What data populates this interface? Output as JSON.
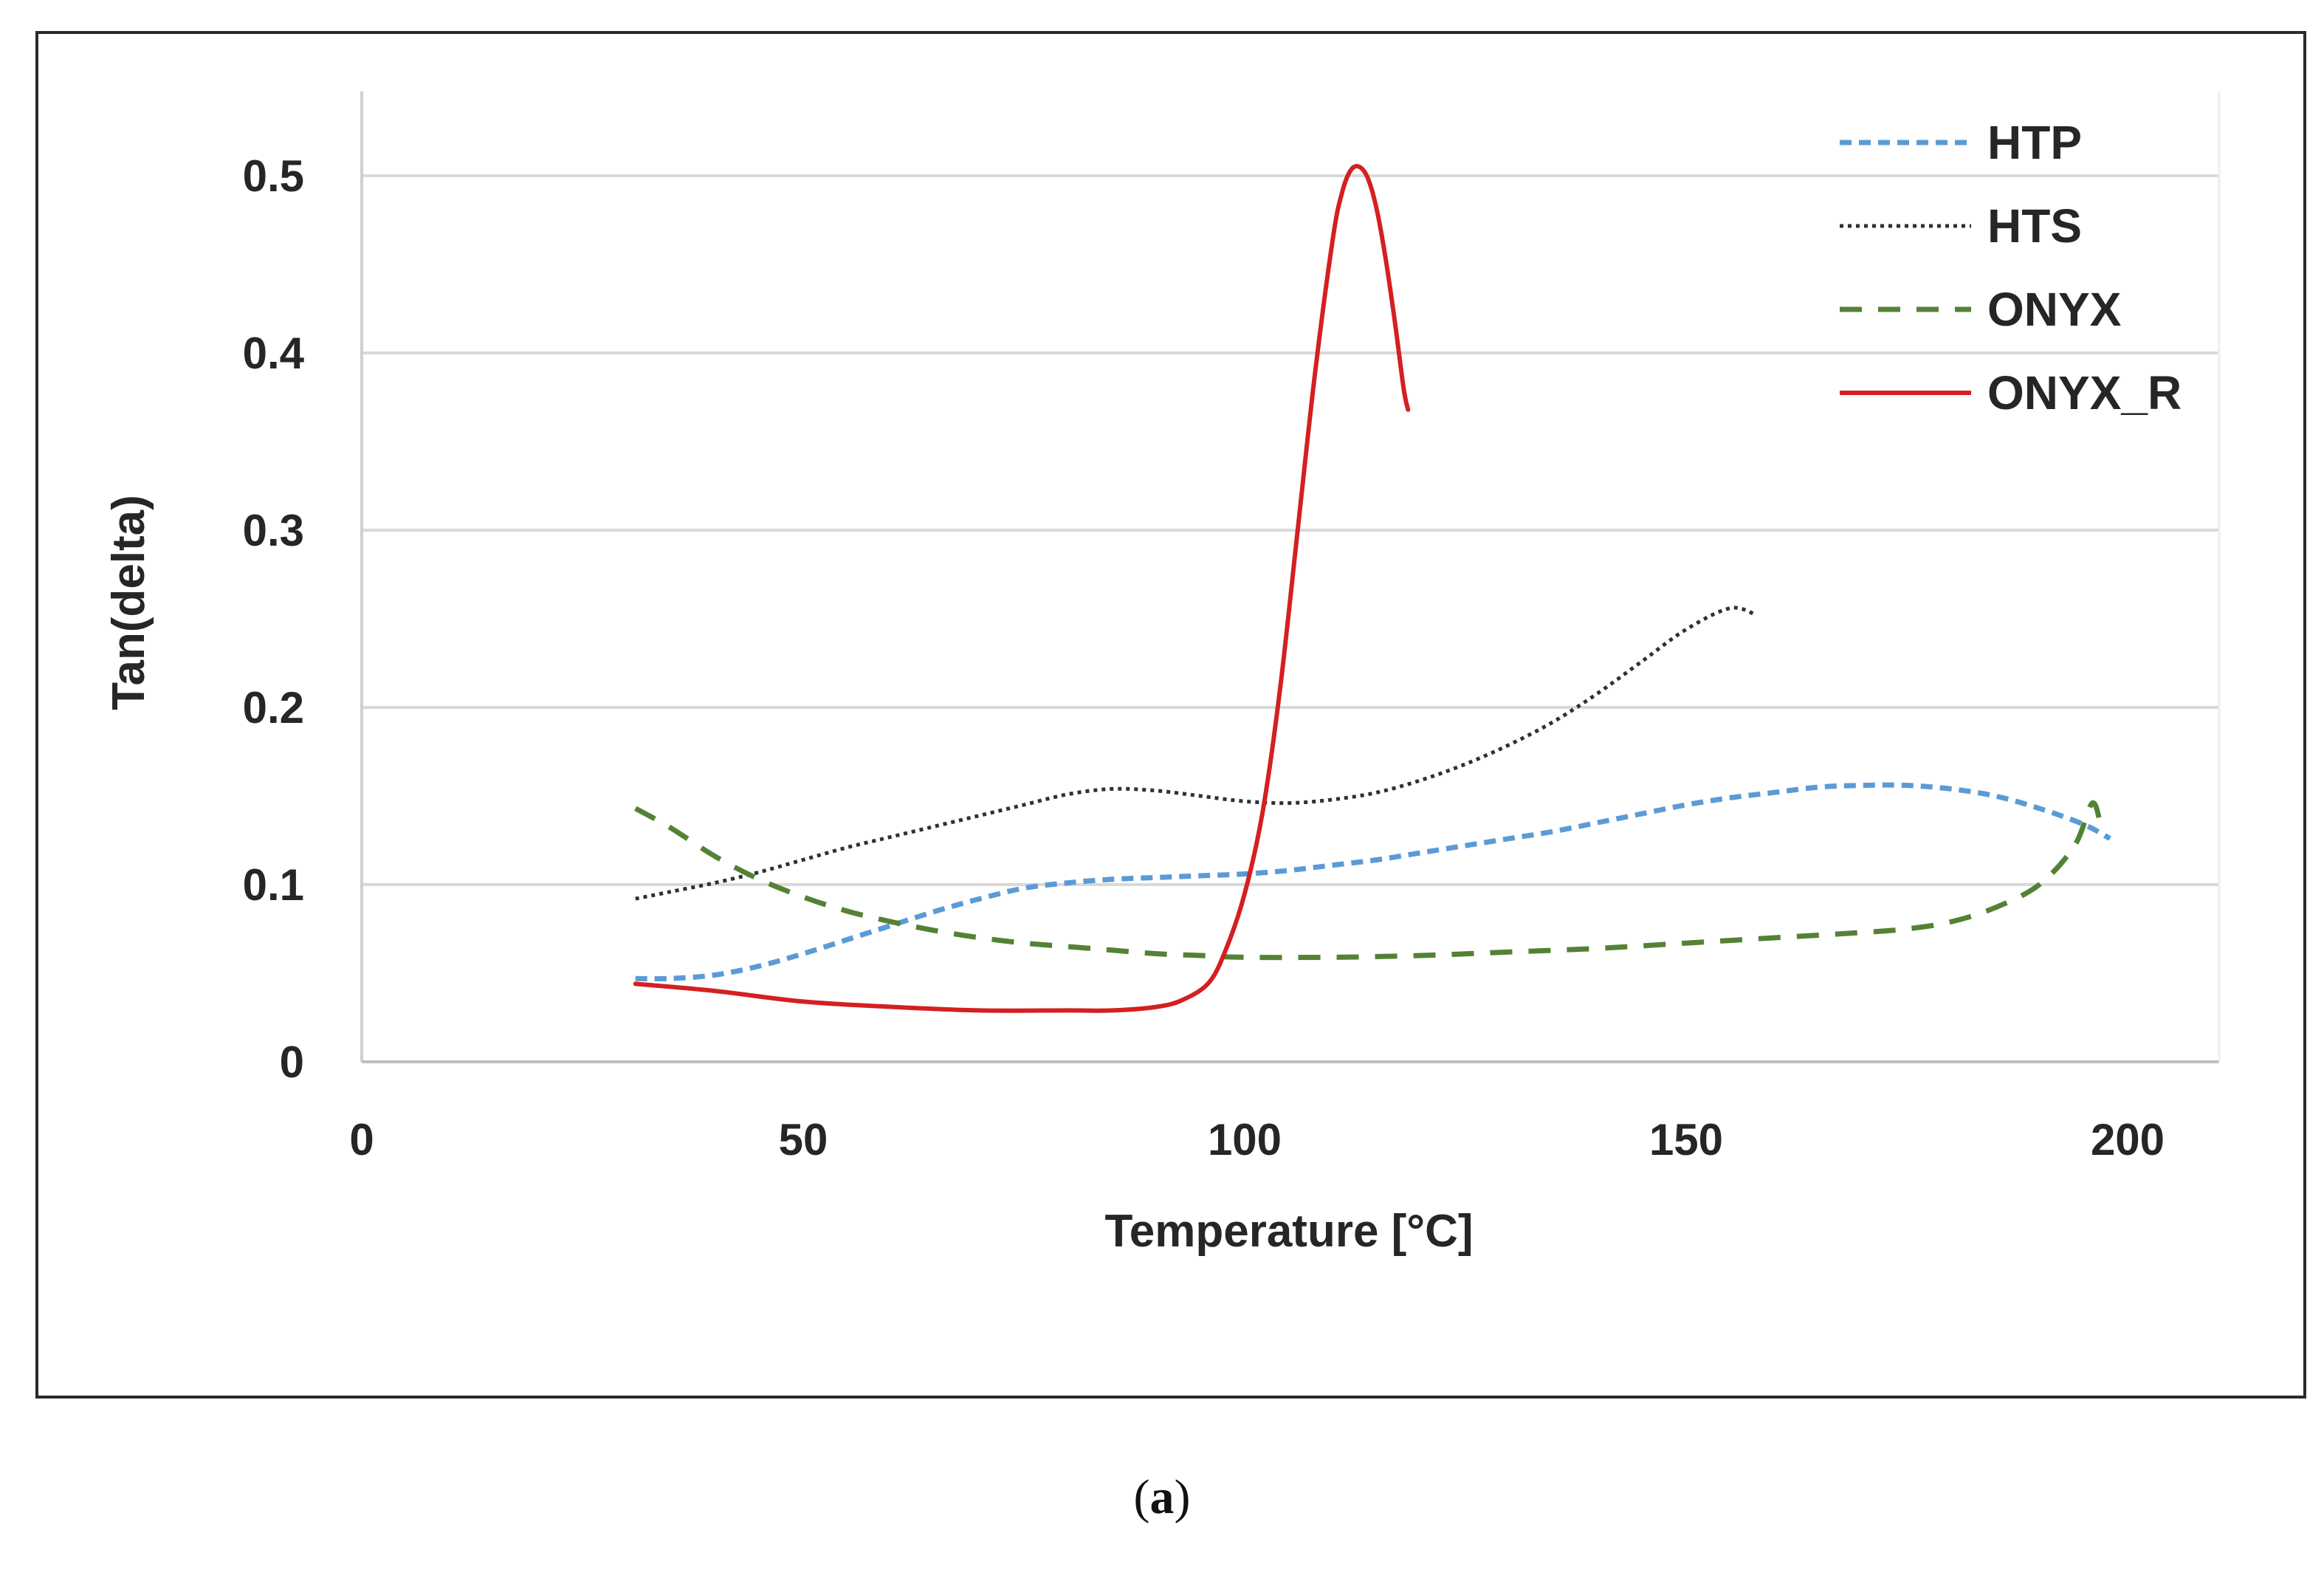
{
  "caption": {
    "open": "(",
    "label": "a",
    "close": ")"
  },
  "chart_data": {
    "type": "line",
    "title": "",
    "xlabel": "Temperature [°C]",
    "ylabel": "Tan(delta)",
    "xlim": [
      0,
      210
    ],
    "ylim": [
      0,
      0.55
    ],
    "x_ticks": [
      0,
      50,
      100,
      150,
      200
    ],
    "x_tick_labels": [
      "0",
      "50",
      "100",
      "150",
      "200"
    ],
    "y_ticks": [
      0,
      0.1,
      0.2,
      0.3,
      0.4,
      0.5
    ],
    "y_tick_labels": [
      "0",
      "0.1",
      "0.2",
      "0.3",
      "0.4",
      "0.5"
    ],
    "grid": "horizontal",
    "legend_position": "top-right",
    "series": [
      {
        "name": "HTP",
        "color": "#5b9bd5",
        "style": "dashed",
        "points": [
          [
            31,
            0.047
          ],
          [
            35,
            0.047
          ],
          [
            40,
            0.049
          ],
          [
            45,
            0.054
          ],
          [
            50,
            0.061
          ],
          [
            55,
            0.069
          ],
          [
            60,
            0.077
          ],
          [
            65,
            0.085
          ],
          [
            70,
            0.092
          ],
          [
            75,
            0.098
          ],
          [
            80,
            0.101
          ],
          [
            85,
            0.103
          ],
          [
            90,
            0.104
          ],
          [
            95,
            0.105
          ],
          [
            100,
            0.106
          ],
          [
            105,
            0.108
          ],
          [
            110,
            0.111
          ],
          [
            115,
            0.114
          ],
          [
            120,
            0.118
          ],
          [
            125,
            0.122
          ],
          [
            130,
            0.126
          ],
          [
            135,
            0.13
          ],
          [
            140,
            0.135
          ],
          [
            145,
            0.14
          ],
          [
            150,
            0.145
          ],
          [
            155,
            0.149
          ],
          [
            160,
            0.152
          ],
          [
            165,
            0.155
          ],
          [
            170,
            0.156
          ],
          [
            175,
            0.156
          ],
          [
            180,
            0.154
          ],
          [
            185,
            0.15
          ],
          [
            190,
            0.143
          ],
          [
            195,
            0.134
          ],
          [
            198,
            0.126
          ]
        ]
      },
      {
        "name": "HTS",
        "color": "#303030",
        "style": "dotted",
        "points": [
          [
            31,
            0.092
          ],
          [
            35,
            0.096
          ],
          [
            40,
            0.101
          ],
          [
            45,
            0.107
          ],
          [
            50,
            0.114
          ],
          [
            55,
            0.121
          ],
          [
            60,
            0.127
          ],
          [
            65,
            0.133
          ],
          [
            70,
            0.139
          ],
          [
            75,
            0.145
          ],
          [
            80,
            0.151
          ],
          [
            85,
            0.154
          ],
          [
            90,
            0.153
          ],
          [
            95,
            0.15
          ],
          [
            100,
            0.147
          ],
          [
            105,
            0.146
          ],
          [
            110,
            0.148
          ],
          [
            115,
            0.152
          ],
          [
            120,
            0.159
          ],
          [
            125,
            0.168
          ],
          [
            130,
            0.179
          ],
          [
            135,
            0.192
          ],
          [
            140,
            0.208
          ],
          [
            145,
            0.226
          ],
          [
            150,
            0.244
          ],
          [
            155,
            0.256
          ],
          [
            158,
            0.252
          ]
        ]
      },
      {
        "name": "ONYX",
        "color": "#548235",
        "style": "longdash",
        "points": [
          [
            31,
            0.143
          ],
          [
            35,
            0.132
          ],
          [
            40,
            0.116
          ],
          [
            45,
            0.103
          ],
          [
            50,
            0.093
          ],
          [
            55,
            0.085
          ],
          [
            60,
            0.079
          ],
          [
            65,
            0.074
          ],
          [
            70,
            0.07
          ],
          [
            75,
            0.067
          ],
          [
            80,
            0.065
          ],
          [
            85,
            0.063
          ],
          [
            90,
            0.061
          ],
          [
            95,
            0.06
          ],
          [
            100,
            0.059
          ],
          [
            110,
            0.059
          ],
          [
            120,
            0.06
          ],
          [
            130,
            0.062
          ],
          [
            140,
            0.064
          ],
          [
            150,
            0.067
          ],
          [
            160,
            0.07
          ],
          [
            170,
            0.073
          ],
          [
            175,
            0.075
          ],
          [
            180,
            0.079
          ],
          [
            185,
            0.087
          ],
          [
            190,
            0.1
          ],
          [
            194,
            0.122
          ],
          [
            196,
            0.146
          ],
          [
            197,
            0.132
          ]
        ]
      },
      {
        "name": "ONYX_R",
        "color": "#d42020",
        "style": "solid",
        "points": [
          [
            31,
            0.044
          ],
          [
            40,
            0.04
          ],
          [
            50,
            0.034
          ],
          [
            60,
            0.031
          ],
          [
            70,
            0.029
          ],
          [
            80,
            0.029
          ],
          [
            85,
            0.029
          ],
          [
            90,
            0.031
          ],
          [
            93,
            0.035
          ],
          [
            96,
            0.045
          ],
          [
            98,
            0.065
          ],
          [
            100,
            0.095
          ],
          [
            102,
            0.14
          ],
          [
            104,
            0.21
          ],
          [
            106,
            0.3
          ],
          [
            108,
            0.39
          ],
          [
            110,
            0.465
          ],
          [
            111,
            0.49
          ],
          [
            112,
            0.503
          ],
          [
            113,
            0.505
          ],
          [
            114,
            0.498
          ],
          [
            115,
            0.48
          ],
          [
            116,
            0.452
          ],
          [
            117,
            0.418
          ],
          [
            118,
            0.38
          ],
          [
            118.5,
            0.368
          ]
        ]
      }
    ]
  }
}
